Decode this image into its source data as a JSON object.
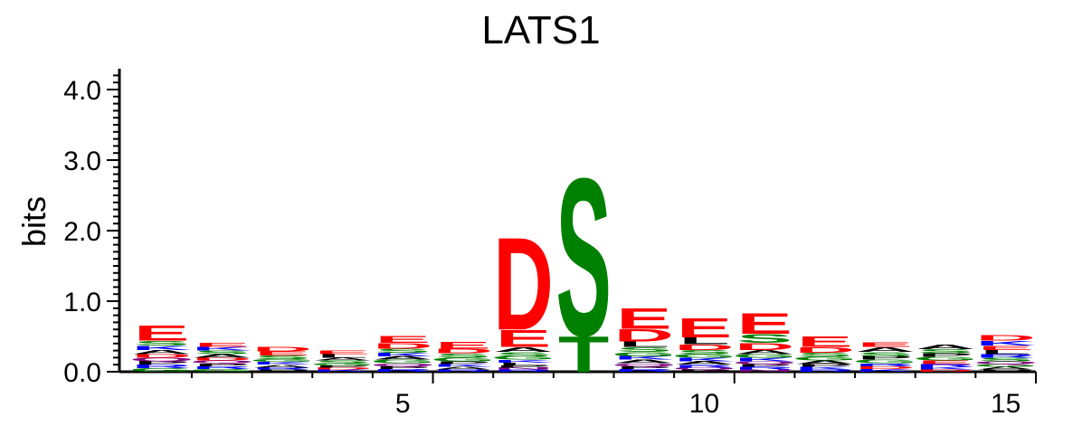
{
  "chart_data": {
    "type": "sequence-logo",
    "title": "LATS1",
    "ylabel": "bits",
    "ylim": [
      0,
      4.3
    ],
    "yticks": [
      "0.0",
      "1.0",
      "2.0",
      "3.0",
      "4.0"
    ],
    "ytick_values": [
      0,
      1,
      2,
      3,
      4
    ],
    "xlim": [
      0.3,
      15.5
    ],
    "xticks": [
      "5",
      "10",
      "15"
    ],
    "xtick_values": [
      5,
      10,
      15
    ],
    "colors": {
      "acidic": "#ff0000",
      "polar": "#008000",
      "basic": "#0000ff",
      "hydrophobic": "#000000",
      "amide": "#800080"
    },
    "positions": [
      {
        "pos": 1,
        "stack": [
          [
            "E",
            0.22,
            "#ff0000"
          ],
          [
            "A",
            0.06,
            "#000000"
          ],
          [
            "S",
            0.07,
            "#008000"
          ],
          [
            "K",
            0.06,
            "#0000ff"
          ],
          [
            "G",
            0.05,
            "#008000"
          ],
          [
            "R",
            0.05,
            "#0000ff"
          ],
          [
            "P",
            0.05,
            "#000000"
          ],
          [
            "Q",
            0.05,
            "#800080"
          ],
          [
            "D",
            0.05,
            "#ff0000"
          ]
        ]
      },
      {
        "pos": 2,
        "stack": [
          [
            "E",
            0.06,
            "#ff0000"
          ],
          [
            "A",
            0.05,
            "#000000"
          ],
          [
            "S",
            0.05,
            "#008000"
          ],
          [
            "K",
            0.05,
            "#0000ff"
          ],
          [
            "G",
            0.04,
            "#008000"
          ],
          [
            "R",
            0.04,
            "#0000ff"
          ],
          [
            "P",
            0.04,
            "#000000"
          ],
          [
            "Q",
            0.04,
            "#800080"
          ],
          [
            "D",
            0.04,
            "#ff0000"
          ]
        ]
      },
      {
        "pos": 3,
        "stack": [
          [
            "D",
            0.07,
            "#ff0000"
          ],
          [
            "E",
            0.06,
            "#ff0000"
          ],
          [
            "S",
            0.05,
            "#008000"
          ],
          [
            "A",
            0.04,
            "#000000"
          ],
          [
            "K",
            0.04,
            "#0000ff"
          ],
          [
            "G",
            0.04,
            "#008000"
          ],
          [
            "P",
            0.03,
            "#000000"
          ],
          [
            "R",
            0.03,
            "#0000ff"
          ]
        ]
      },
      {
        "pos": 4,
        "stack": [
          [
            "L",
            0.05,
            "#000000"
          ],
          [
            "E",
            0.05,
            "#ff0000"
          ],
          [
            "S",
            0.04,
            "#008000"
          ],
          [
            "A",
            0.04,
            "#000000"
          ],
          [
            "K",
            0.03,
            "#0000ff"
          ],
          [
            "D",
            0.03,
            "#ff0000"
          ],
          [
            "P",
            0.03,
            "#000000"
          ],
          [
            "G",
            0.03,
            "#008000"
          ]
        ]
      },
      {
        "pos": 5,
        "stack": [
          [
            "E",
            0.1,
            "#ff0000"
          ],
          [
            "D",
            0.08,
            "#ff0000"
          ],
          [
            "S",
            0.06,
            "#008000"
          ],
          [
            "G",
            0.05,
            "#008000"
          ],
          [
            "A",
            0.05,
            "#000000"
          ],
          [
            "K",
            0.05,
            "#0000ff"
          ],
          [
            "R",
            0.04,
            "#0000ff"
          ],
          [
            "P",
            0.04,
            "#000000"
          ],
          [
            "Q",
            0.04,
            "#800080"
          ]
        ]
      },
      {
        "pos": 6,
        "stack": [
          [
            "E",
            0.1,
            "#ff0000"
          ],
          [
            "D",
            0.07,
            "#ff0000"
          ],
          [
            "S",
            0.06,
            "#008000"
          ],
          [
            "G",
            0.05,
            "#008000"
          ],
          [
            "A",
            0.04,
            "#000000"
          ],
          [
            "K",
            0.04,
            "#0000ff"
          ],
          [
            "P",
            0.04,
            "#000000"
          ],
          [
            "R",
            0.03,
            "#0000ff"
          ]
        ]
      },
      {
        "pos": 7,
        "stack": [
          [
            "D",
            1.35,
            "#ff0000"
          ],
          [
            "E",
            0.25,
            "#ff0000"
          ],
          [
            "A",
            0.07,
            "#000000"
          ],
          [
            "S",
            0.06,
            "#008000"
          ],
          [
            "G",
            0.05,
            "#008000"
          ],
          [
            "L",
            0.04,
            "#000000"
          ],
          [
            "K",
            0.04,
            "#0000ff"
          ],
          [
            "R",
            0.03,
            "#0000ff"
          ],
          [
            "N",
            0.03,
            "#800080"
          ],
          [
            "P",
            0.03,
            "#000000"
          ]
        ]
      },
      {
        "pos": 8,
        "stack": [
          [
            "S",
            2.3,
            "#008000"
          ],
          [
            "T",
            0.52,
            "#008000"
          ]
        ]
      },
      {
        "pos": 9,
        "stack": [
          [
            "E",
            0.3,
            "#ff0000"
          ],
          [
            "D",
            0.18,
            "#ff0000"
          ],
          [
            "L",
            0.08,
            "#000000"
          ],
          [
            "S",
            0.07,
            "#008000"
          ],
          [
            "G",
            0.06,
            "#008000"
          ],
          [
            "A",
            0.05,
            "#000000"
          ],
          [
            "K",
            0.05,
            "#0000ff"
          ],
          [
            "R",
            0.04,
            "#0000ff"
          ],
          [
            "P",
            0.04,
            "#000000"
          ],
          [
            "Q",
            0.04,
            "#800080"
          ]
        ]
      },
      {
        "pos": 10,
        "stack": [
          [
            "E",
            0.28,
            "#ff0000"
          ],
          [
            "L",
            0.1,
            "#000000"
          ],
          [
            "D",
            0.08,
            "#ff0000"
          ],
          [
            "S",
            0.06,
            "#008000"
          ],
          [
            "A",
            0.05,
            "#000000"
          ],
          [
            "K",
            0.05,
            "#0000ff"
          ],
          [
            "G",
            0.05,
            "#008000"
          ],
          [
            "R",
            0.04,
            "#0000ff"
          ],
          [
            "P",
            0.03,
            "#000000"
          ],
          [
            "Q",
            0.03,
            "#800080"
          ]
        ]
      },
      {
        "pos": 11,
        "stack": [
          [
            "E",
            0.3,
            "#ff0000"
          ],
          [
            "S",
            0.13,
            "#008000"
          ],
          [
            "D",
            0.1,
            "#ff0000"
          ],
          [
            "A",
            0.06,
            "#000000"
          ],
          [
            "K",
            0.05,
            "#0000ff"
          ],
          [
            "G",
            0.05,
            "#008000"
          ],
          [
            "R",
            0.04,
            "#0000ff"
          ],
          [
            "P",
            0.04,
            "#000000"
          ],
          [
            "Q",
            0.04,
            "#800080"
          ],
          [
            "N",
            0.03,
            "#800080"
          ]
        ]
      },
      {
        "pos": 12,
        "stack": [
          [
            "E",
            0.15,
            "#ff0000"
          ],
          [
            "D",
            0.08,
            "#ff0000"
          ],
          [
            "S",
            0.06,
            "#008000"
          ],
          [
            "A",
            0.05,
            "#000000"
          ],
          [
            "G",
            0.05,
            "#008000"
          ],
          [
            "K",
            0.04,
            "#0000ff"
          ],
          [
            "P",
            0.04,
            "#000000"
          ],
          [
            "R",
            0.03,
            "#0000ff"
          ]
        ]
      },
      {
        "pos": 13,
        "stack": [
          [
            "A",
            0.07,
            "#000000"
          ],
          [
            "E",
            0.07,
            "#ff0000"
          ],
          [
            "S",
            0.06,
            "#008000"
          ],
          [
            "G",
            0.05,
            "#008000"
          ],
          [
            "P",
            0.05,
            "#000000"
          ],
          [
            "K",
            0.04,
            "#0000ff"
          ],
          [
            "D",
            0.04,
            "#ff0000"
          ],
          [
            "R",
            0.04,
            "#0000ff"
          ]
        ]
      },
      {
        "pos": 14,
        "stack": [
          [
            "A",
            0.07,
            "#000000"
          ],
          [
            "S",
            0.06,
            "#008000"
          ],
          [
            "E",
            0.05,
            "#ff0000"
          ],
          [
            "G",
            0.05,
            "#008000"
          ],
          [
            "P",
            0.05,
            "#000000"
          ],
          [
            "K",
            0.04,
            "#0000ff"
          ],
          [
            "R",
            0.04,
            "#0000ff"
          ],
          [
            "D",
            0.03,
            "#ff0000"
          ]
        ]
      },
      {
        "pos": 15,
        "stack": [
          [
            "D",
            0.08,
            "#ff0000"
          ],
          [
            "L",
            0.06,
            "#000000"
          ],
          [
            "K",
            0.07,
            "#0000ff"
          ],
          [
            "E",
            0.06,
            "#ff0000"
          ],
          [
            "S",
            0.05,
            "#008000"
          ],
          [
            "R",
            0.05,
            "#0000ff"
          ],
          [
            "A",
            0.04,
            "#000000"
          ],
          [
            "G",
            0.04,
            "#008000"
          ],
          [
            "Q",
            0.04,
            "#800080"
          ],
          [
            "P",
            0.03,
            "#000000"
          ]
        ]
      }
    ]
  }
}
